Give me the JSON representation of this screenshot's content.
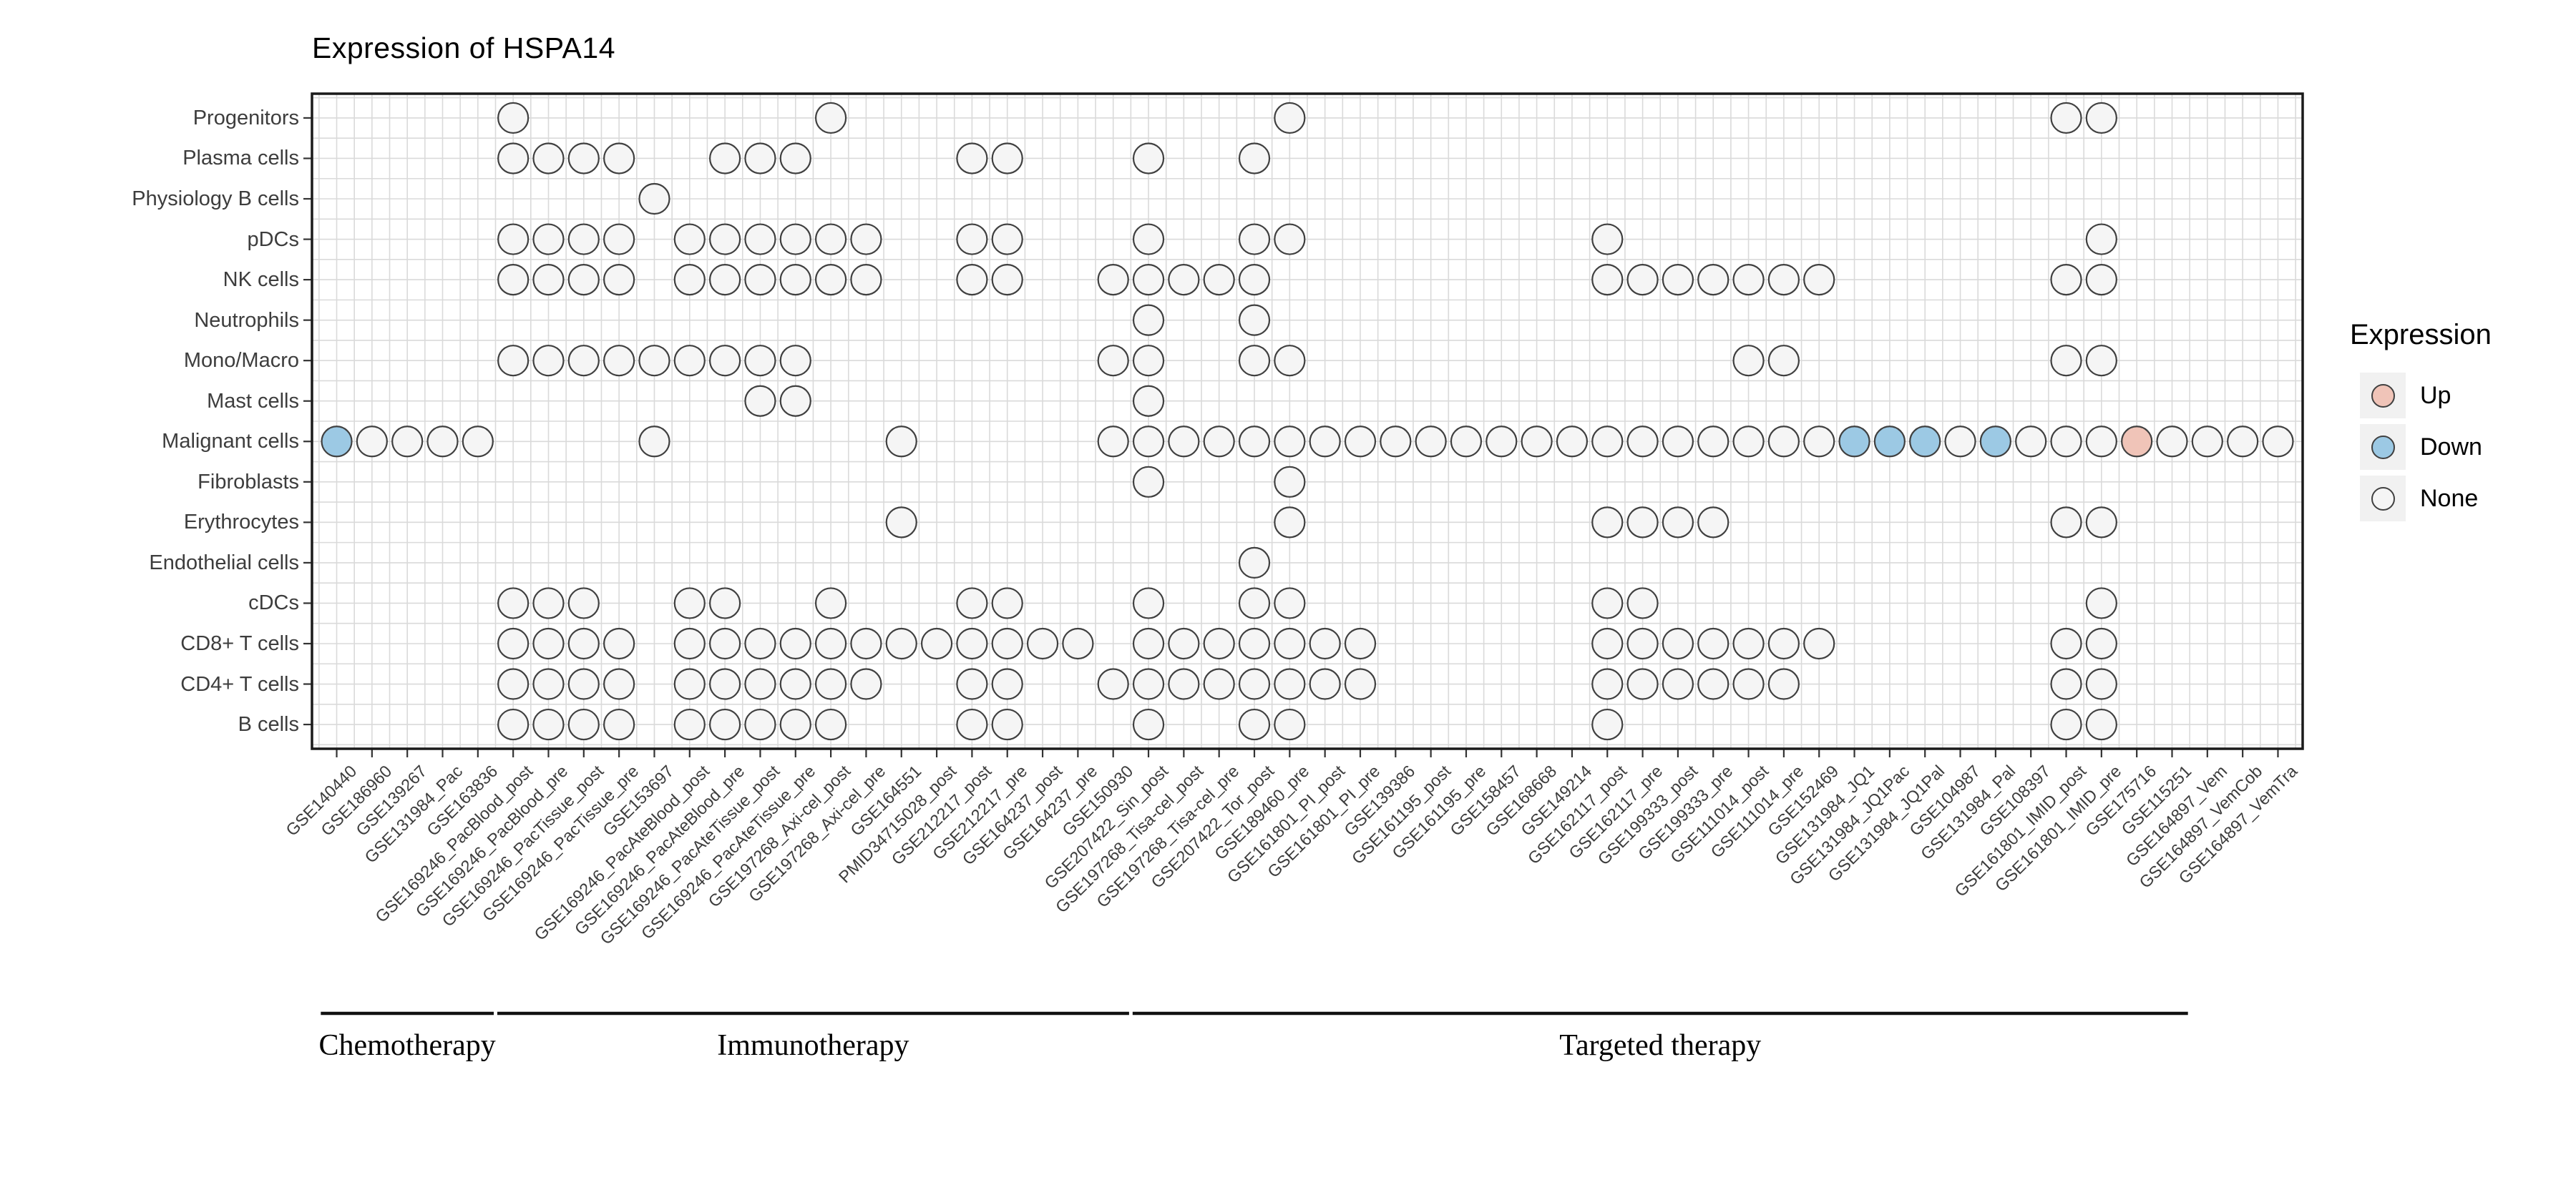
{
  "legend": {
    "title": "Expression",
    "items": [
      {
        "label": "Up",
        "status": "up"
      },
      {
        "label": "Down",
        "status": "down"
      },
      {
        "label": "None",
        "status": "none"
      }
    ]
  },
  "colors": {
    "up": "#F0C4B8",
    "down": "#9CC9E4",
    "none": "#F5F5F5",
    "stroke": "#404040",
    "grid": "#DADADA",
    "border": "#1A1A1A"
  },
  "groups": [
    {
      "label": "Chemotherapy",
      "start": 0,
      "end": 4
    },
    {
      "label": "Immunotherapy",
      "start": 5,
      "end": 22
    },
    {
      "label": "Targeted therapy",
      "start": 23,
      "end": 52
    }
  ],
  "chart_data": {
    "type": "scatter",
    "subtype": "dot-matrix",
    "title": "Expression of HSPA14",
    "xlabel": "",
    "ylabel": "",
    "grid": true,
    "legend_position": "right",
    "rows": [
      "Progenitors",
      "Plasma cells",
      "Physiology B cells",
      "pDCs",
      "NK cells",
      "Neutrophils",
      "Mono/Macro",
      "Mast cells",
      "Malignant cells",
      "Fibroblasts",
      "Erythrocytes",
      "Endothelial cells",
      "cDCs",
      "CD8+ T cells",
      "CD4+ T cells",
      "B cells"
    ],
    "columns": [
      "GSE140440",
      "GSE186960",
      "GSE139267",
      "GSE131984_Pac",
      "GSE163836",
      "GSE169246_PacBlood_post",
      "GSE169246_PacBlood_pre",
      "GSE169246_PacTissue_post",
      "GSE169246_PacTissue_pre",
      "GSE153697",
      "GSE169246_PacAteBlood_post",
      "GSE169246_PacAteBlood_pre",
      "GSE169246_PacAteTissue_post",
      "GSE169246_PacAteTissue_pre",
      "GSE197268_Axi-cel_post",
      "GSE197268_Axi-cel_pre",
      "GSE164551",
      "PMID34715028_post",
      "GSE212217_post",
      "GSE212217_pre",
      "GSE164237_post",
      "GSE164237_pre",
      "GSE150930",
      "GSE207422_Sin_post",
      "GSE197268_Tisa-cel_post",
      "GSE197268_Tisa-cel_pre",
      "GSE207422_Tor_post",
      "GSE189460_pre",
      "GSE161801_PI_post",
      "GSE161801_PI_pre",
      "GSE139386",
      "GSE161195_post",
      "GSE161195_pre",
      "GSE158457",
      "GSE168668",
      "GSE149214",
      "GSE162117_post",
      "GSE162117_pre",
      "GSE199333_post",
      "GSE199333_pre",
      "GSE111014_post",
      "GSE111014_pre",
      "GSE152469",
      "GSE131984_JQ1",
      "GSE131984_JQ1Pac",
      "GSE131984_JQ1Pal",
      "GSE104987",
      "GSE131984_Pal",
      "GSE108397",
      "GSE161801_IMID_post",
      "GSE161801_IMID_pre",
      "GSE175716",
      "GSE115251",
      "GSE164897_Vem",
      "GSE164897_VemCob",
      "GSE164897_VemTra"
    ],
    "points": [
      {
        "row": "Progenitors",
        "none": [
          5,
          14,
          27,
          49,
          50
        ],
        "down": [],
        "up": []
      },
      {
        "row": "Plasma cells",
        "none": [
          5,
          6,
          7,
          8,
          11,
          12,
          13,
          18,
          19,
          23,
          26
        ],
        "down": [],
        "up": []
      },
      {
        "row": "Physiology B cells",
        "none": [
          9
        ],
        "down": [],
        "up": []
      },
      {
        "row": "pDCs",
        "none": [
          5,
          6,
          7,
          8,
          10,
          11,
          12,
          13,
          14,
          15,
          18,
          19,
          23,
          26,
          27,
          36,
          50
        ],
        "down": [],
        "up": []
      },
      {
        "row": "NK cells",
        "none": [
          5,
          6,
          7,
          8,
          10,
          11,
          12,
          13,
          14,
          15,
          18,
          19,
          22,
          23,
          24,
          25,
          26,
          36,
          37,
          38,
          39,
          40,
          41,
          42,
          49,
          50
        ],
        "down": [],
        "up": []
      },
      {
        "row": "Neutrophils",
        "none": [
          23,
          26
        ],
        "down": [],
        "up": []
      },
      {
        "row": "Mono/Macro",
        "none": [
          5,
          6,
          7,
          8,
          9,
          10,
          11,
          12,
          13,
          22,
          23,
          26,
          27,
          40,
          41,
          49,
          50
        ],
        "down": [],
        "up": []
      },
      {
        "row": "Mast cells",
        "none": [
          12,
          13,
          23
        ],
        "down": [],
        "up": []
      },
      {
        "row": "Malignant cells",
        "none": [
          1,
          2,
          3,
          4,
          9,
          16,
          22,
          23,
          24,
          25,
          26,
          27,
          28,
          29,
          30,
          31,
          32,
          33,
          34,
          35,
          36,
          37,
          38,
          39,
          40,
          41,
          42,
          46,
          48,
          49,
          50,
          52,
          53,
          54,
          55
        ],
        "down": [
          0,
          43,
          44,
          45,
          47
        ],
        "up": [
          51
        ]
      },
      {
        "row": "Fibroblasts",
        "none": [
          23,
          27
        ],
        "down": [],
        "up": []
      },
      {
        "row": "Erythrocytes",
        "none": [
          16,
          27,
          36,
          37,
          38,
          39,
          49,
          50
        ],
        "down": [],
        "up": []
      },
      {
        "row": "Endothelial cells",
        "none": [
          26
        ],
        "down": [],
        "up": []
      },
      {
        "row": "cDCs",
        "none": [
          5,
          6,
          7,
          10,
          11,
          14,
          18,
          19,
          23,
          26,
          27,
          36,
          37,
          50
        ],
        "down": [],
        "up": []
      },
      {
        "row": "CD8+ T cells",
        "none": [
          5,
          6,
          7,
          8,
          10,
          11,
          12,
          13,
          14,
          15,
          16,
          17,
          18,
          19,
          20,
          21,
          23,
          24,
          25,
          26,
          27,
          28,
          29,
          36,
          37,
          38,
          39,
          40,
          41,
          42,
          49,
          50
        ],
        "down": [],
        "up": []
      },
      {
        "row": "CD4+ T cells",
        "none": [
          5,
          6,
          7,
          8,
          10,
          11,
          12,
          13,
          14,
          15,
          18,
          19,
          22,
          23,
          24,
          25,
          26,
          27,
          28,
          29,
          36,
          37,
          38,
          39,
          40,
          41,
          49,
          50
        ],
        "down": [],
        "up": []
      },
      {
        "row": "B cells",
        "none": [
          5,
          6,
          7,
          8,
          10,
          11,
          12,
          13,
          14,
          18,
          19,
          23,
          26,
          27,
          36,
          49,
          50
        ],
        "down": [],
        "up": []
      }
    ],
    "status_legend": {
      "up": "Up",
      "down": "Down",
      "none": "None"
    }
  }
}
